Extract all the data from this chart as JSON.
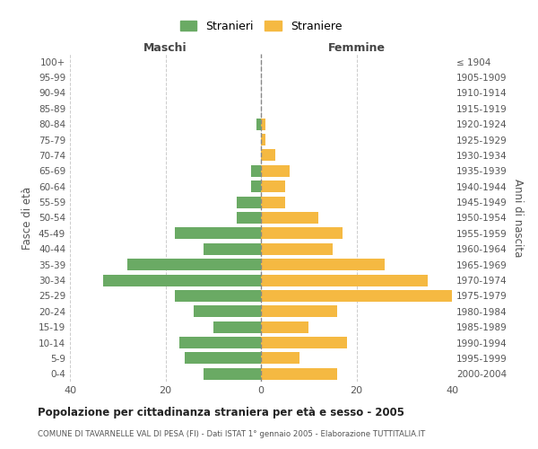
{
  "age_groups": [
    "100+",
    "95-99",
    "90-94",
    "85-89",
    "80-84",
    "75-79",
    "70-74",
    "65-69",
    "60-64",
    "55-59",
    "50-54",
    "45-49",
    "40-44",
    "35-39",
    "30-34",
    "25-29",
    "20-24",
    "15-19",
    "10-14",
    "5-9",
    "0-4"
  ],
  "birth_years": [
    "≤ 1904",
    "1905-1909",
    "1910-1914",
    "1915-1919",
    "1920-1924",
    "1925-1929",
    "1930-1934",
    "1935-1939",
    "1940-1944",
    "1945-1949",
    "1950-1954",
    "1955-1959",
    "1960-1964",
    "1965-1969",
    "1970-1974",
    "1975-1979",
    "1980-1984",
    "1985-1989",
    "1990-1994",
    "1995-1999",
    "2000-2004"
  ],
  "males": [
    0,
    0,
    0,
    0,
    1,
    0,
    0,
    2,
    2,
    5,
    5,
    18,
    12,
    28,
    33,
    18,
    14,
    10,
    17,
    16,
    12
  ],
  "females": [
    0,
    0,
    0,
    0,
    1,
    1,
    3,
    6,
    5,
    5,
    12,
    17,
    15,
    26,
    35,
    40,
    16,
    10,
    18,
    8,
    16
  ],
  "male_color": "#6aaa64",
  "female_color": "#f5b942",
  "background_color": "#ffffff",
  "grid_color": "#cccccc",
  "title": "Popolazione per cittadinanza straniera per età e sesso - 2005",
  "subtitle": "COMUNE DI TAVARNELLE VAL DI PESA (FI) - Dati ISTAT 1° gennaio 2005 - Elaborazione TUTTITALIA.IT",
  "xlabel_left": "Maschi",
  "xlabel_right": "Femmine",
  "ylabel_left": "Fasce di età",
  "ylabel_right": "Anni di nascita",
  "legend_male": "Stranieri",
  "legend_female": "Straniere",
  "xlim": 40,
  "xticks": [
    -40,
    -20,
    0,
    20,
    40
  ],
  "xticklabels": [
    "40",
    "20",
    "0",
    "20",
    "40"
  ]
}
